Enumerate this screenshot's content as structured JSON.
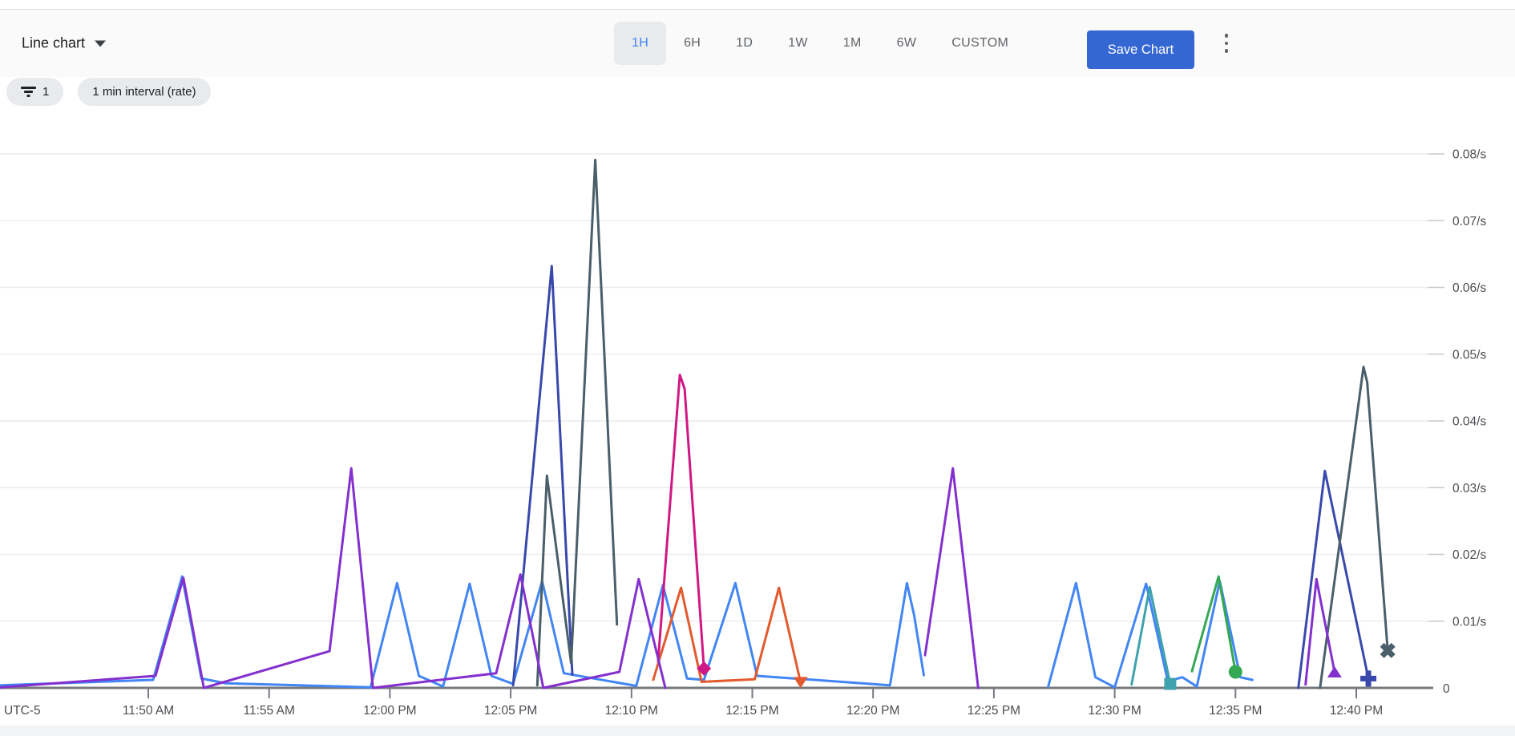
{
  "header": {
    "chart_type_label": "Line chart",
    "time_ranges": [
      "1H",
      "6H",
      "1D",
      "1W",
      "1M",
      "6W",
      "CUSTOM"
    ],
    "selected_range": "1H",
    "save_button_label": "Save Chart"
  },
  "filters": {
    "filter_count": "1",
    "interval_label": "1 min interval (rate)"
  },
  "colors": {
    "selected_range_text": "#4285f4",
    "selected_range_bg": "#e9eaec",
    "save_button_bg": "#3567d3",
    "toolbar_bg": "#fafafa",
    "chip_bg": "#e9eaed",
    "gridline": "#ececec",
    "axis_line": "#75797d",
    "axis_text": "#4a4d51"
  },
  "chart_data": {
    "type": "line",
    "x_axis": {
      "timezone_label": "UTC-5",
      "minute_zero_time": "11:50 AM",
      "ticks": [
        {
          "minute": 0,
          "label": "11:50 AM"
        },
        {
          "minute": 5,
          "label": "11:55 AM"
        },
        {
          "minute": 10,
          "label": "12:00 PM"
        },
        {
          "minute": 15,
          "label": "12:05 PM"
        },
        {
          "minute": 20,
          "label": "12:10 PM"
        },
        {
          "minute": 25,
          "label": "12:15 PM"
        },
        {
          "minute": 30,
          "label": "12:20 PM"
        },
        {
          "minute": 35,
          "label": "12:25 PM"
        },
        {
          "minute": 40,
          "label": "12:30 PM"
        },
        {
          "minute": 45,
          "label": "12:35 PM"
        },
        {
          "minute": 50,
          "label": "12:40 PM"
        }
      ]
    },
    "y_axis": {
      "unit": "/s",
      "range": [
        0,
        0.08
      ],
      "grid": true,
      "ticks": [
        {
          "value": 0,
          "label": "0"
        },
        {
          "value": 0.01,
          "label": "0.01/s"
        },
        {
          "value": 0.02,
          "label": "0.02/s"
        },
        {
          "value": 0.03,
          "label": "0.03/s"
        },
        {
          "value": 0.04,
          "label": "0.04/s"
        },
        {
          "value": 0.05,
          "label": "0.05/s"
        },
        {
          "value": 0.06,
          "label": "0.06/s"
        },
        {
          "value": 0.07,
          "label": "0.07/s"
        },
        {
          "value": 0.08,
          "label": "0.08/s"
        }
      ]
    },
    "series": [
      {
        "id": "blue",
        "color": "#4285f4",
        "end_marker": null,
        "segments": [
          [
            [
              -6.1,
              0.0004
            ],
            [
              0.2,
              0.0012
            ],
            [
              1.4,
              0.0167
            ],
            [
              2.2,
              0.0014
            ],
            [
              3.2,
              0.0007
            ],
            [
              9.2,
              0.0001
            ],
            [
              10.3,
              0.0157
            ],
            [
              11.2,
              0.0018
            ],
            [
              12.2,
              0.0002
            ],
            [
              13.3,
              0.0156
            ],
            [
              14.2,
              0.0018
            ],
            [
              15.1,
              0.0006
            ],
            [
              16.3,
              0.016
            ],
            [
              17.2,
              0.0022
            ],
            [
              20.2,
              0.0003
            ],
            [
              21.3,
              0.0154
            ],
            [
              22.3,
              0.0014
            ],
            [
              23.0,
              0.0012
            ],
            [
              24.3,
              0.0157
            ],
            [
              25.2,
              0.0018
            ],
            [
              30.7,
              0.0004
            ],
            [
              31.4,
              0.0157
            ],
            [
              31.7,
              0.0109
            ],
            [
              32.1,
              0.0019
            ]
          ],
          [
            [
              37.25,
              0.0002
            ],
            [
              38.4,
              0.0157
            ],
            [
              39.2,
              0.0016
            ],
            [
              40.0,
              0.0001
            ],
            [
              41.3,
              0.0156
            ],
            [
              42.2,
              0.001
            ],
            [
              42.8,
              0.0016
            ],
            [
              43.4,
              0.0002
            ],
            [
              44.35,
              0.016
            ],
            [
              45.2,
              0.0016
            ],
            [
              45.7,
              0.0012
            ]
          ]
        ]
      },
      {
        "id": "teal",
        "color": "#3fa2ad",
        "end_marker": {
          "minute": 42.3,
          "value": 0.0006,
          "shape": "square"
        },
        "segments": [
          [
            [
              40.7,
              0.0005
            ],
            [
              41.45,
              0.0151
            ],
            [
              42.3,
              0.0006
            ]
          ]
        ]
      },
      {
        "id": "green",
        "color": "#34a853",
        "end_marker": {
          "minute": 45.0,
          "value": 0.0024,
          "shape": "circle"
        },
        "segments": [
          [
            [
              43.2,
              0.0025
            ],
            [
              44.3,
              0.0167
            ],
            [
              45.0,
              0.0024
            ]
          ]
        ]
      },
      {
        "id": "orange",
        "color": "#e25a2d",
        "end_marker": {
          "minute": 27.0,
          "value": 0.0008,
          "shape": "triangle-down"
        },
        "segments": [
          [
            [
              20.9,
              0.0012
            ],
            [
              22.05,
              0.015
            ],
            [
              22.9,
              0.0009
            ],
            [
              25.1,
              0.0013
            ],
            [
              26.1,
              0.015
            ],
            [
              27.0,
              0.0008
            ]
          ]
        ]
      },
      {
        "id": "navy",
        "color": "#3949ab",
        "end_marker": {
          "minute": 50.5,
          "value": 0.0014,
          "shape": "plus"
        },
        "segments": [
          [
            [
              15.1,
              0.0004
            ],
            [
              16.7,
              0.0632
            ],
            [
              17.55,
              0.002
            ]
          ],
          [
            [
              47.6,
              0.0
            ],
            [
              48.7,
              0.0325
            ],
            [
              50.5,
              0.0014
            ]
          ]
        ]
      },
      {
        "id": "slate",
        "color": "#4a5f6a",
        "end_marker": {
          "minute": 51.3,
          "value": 0.0056,
          "shape": "x"
        },
        "segments": [
          [
            [
              16.1,
              0.0004
            ],
            [
              16.5,
              0.0318
            ],
            [
              17.5,
              0.0037
            ],
            [
              18.5,
              0.0791
            ],
            [
              19.4,
              0.0095
            ]
          ],
          [
            [
              48.5,
              0.0
            ],
            [
              50.3,
              0.0481
            ],
            [
              50.45,
              0.0458
            ],
            [
              51.3,
              0.0056
            ]
          ]
        ]
      },
      {
        "id": "magenta",
        "color": "#d01884",
        "end_marker": {
          "minute": 23.0,
          "value": 0.0029,
          "shape": "diamond"
        },
        "segments": [
          [
            [
              21.1,
              0.004
            ],
            [
              22.0,
              0.0469
            ],
            [
              22.2,
              0.0448
            ],
            [
              23.0,
              0.0029
            ]
          ]
        ]
      },
      {
        "id": "purple",
        "color": "#8430ce",
        "end_marker": {
          "minute": 49.1,
          "value": 0.0024,
          "shape": "triangle-up"
        },
        "segments": [
          [
            [
              -6.1,
              0.0001
            ],
            [
              0.3,
              0.0018
            ],
            [
              1.45,
              0.0165
            ],
            [
              2.3,
              0.0
            ],
            [
              7.5,
              0.0055
            ],
            [
              8.4,
              0.0329
            ],
            [
              9.3,
              0.0
            ],
            [
              14.4,
              0.0022
            ],
            [
              15.4,
              0.017
            ],
            [
              16.35,
              0.0
            ],
            [
              19.5,
              0.0024
            ],
            [
              20.3,
              0.0163
            ],
            [
              21.4,
              0.0
            ]
          ],
          [
            [
              32.15,
              0.0049
            ],
            [
              33.3,
              0.0329
            ],
            [
              34.35,
              0.0
            ]
          ],
          [
            [
              47.9,
              0.0005
            ],
            [
              48.35,
              0.0163
            ],
            [
              49.1,
              0.0024
            ]
          ]
        ]
      }
    ]
  }
}
